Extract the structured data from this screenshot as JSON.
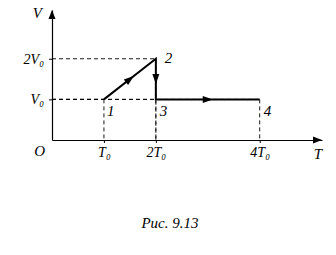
{
  "chart_data": {
    "type": "line",
    "caption": "Рис. 9.13",
    "x_label": "T",
    "y_label": "V",
    "origin_label": "O",
    "x": [
      1,
      2,
      2,
      4
    ],
    "values": [
      1,
      2,
      1,
      1
    ],
    "point_labels": [
      "1",
      "2",
      "3",
      "4"
    ],
    "color": "#000000",
    "xlim": [
      0,
      5.2
    ],
    "ylim": [
      0,
      3.2
    ],
    "xticks": [
      {
        "value": 1,
        "label": "T₀"
      },
      {
        "value": 2,
        "label": "2T₀"
      },
      {
        "value": 4,
        "label": "4T₀"
      }
    ],
    "yticks": [
      {
        "value": 1,
        "label": "V₀"
      },
      {
        "value": 2,
        "label": "2V₀"
      }
    ],
    "grid": false
  }
}
